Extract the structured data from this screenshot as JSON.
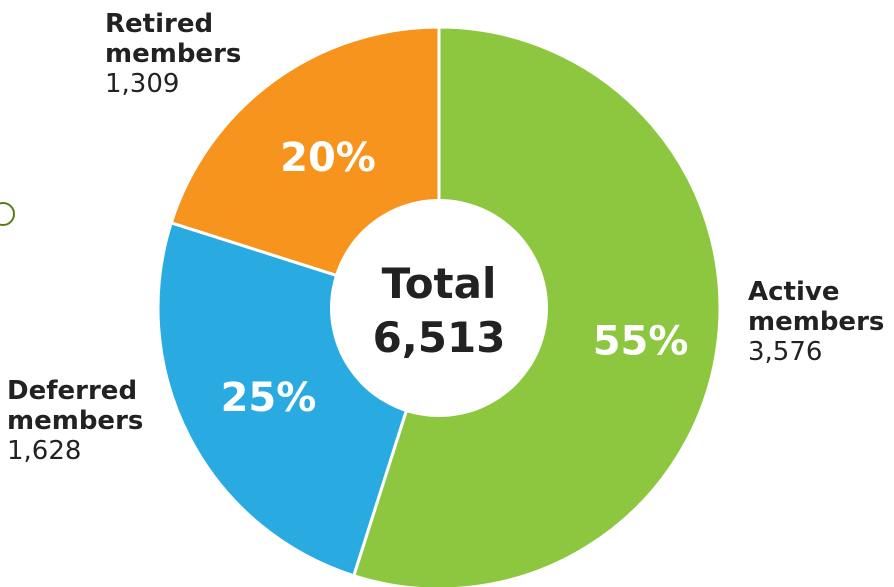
{
  "chart_data": {
    "type": "pie",
    "donut": true,
    "center_label": "Total",
    "center_value": "6,513",
    "slices": [
      {
        "name": "Active members",
        "title_line1": "Active",
        "title_line2": "members",
        "value": 3576,
        "value_label": "3,576",
        "percent_label": "55%",
        "color": "#8dc63f"
      },
      {
        "name": "Deferred members",
        "title_line1": "Deferred",
        "title_line2": "members",
        "value": 1628,
        "value_label": "1,628",
        "percent_label": "25%",
        "color": "#29abe2"
      },
      {
        "name": "Retired members",
        "title_line1": "Retired",
        "title_line2": "members",
        "value": 1309,
        "value_label": "1,309",
        "percent_label": "20%",
        "color": "#f7941d"
      }
    ]
  },
  "colors": {
    "slice_text": "#ffffff",
    "center_text": "#222222",
    "divider": "#ffffff",
    "decoration": "#5a7a1a"
  }
}
